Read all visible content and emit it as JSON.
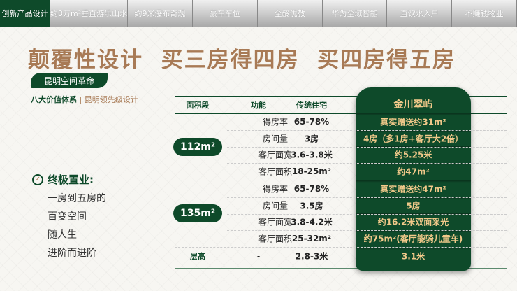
{
  "tabs": [
    "创新产品设计",
    "约3万m²垂直游乐山水",
    "约9米瀑布奇观",
    "豪车车位",
    "全龄优教",
    "华为全域智能",
    "直饮水入户",
    "不赚钱物业"
  ],
  "title": "颠覆性设计  买三房得四房  买四房得五房",
  "pill": "昆明空间革命",
  "subtitle": {
    "main": "八大价值体系",
    "sep": "|",
    "rest": "昆明领先级设计"
  },
  "left": {
    "heading": "终极置业:",
    "lines": [
      "一房到五房的",
      "百变空间",
      "随人生",
      "进阶而进阶"
    ]
  },
  "table": {
    "headers": [
      "面积段",
      "功能",
      "传统住宅",
      "金川翠屿"
    ],
    "groups": [
      {
        "area": "112m²",
        "rows": [
          [
            "得房率",
            "65-78%",
            "真实赠送约31m²"
          ],
          [
            "房间量",
            "3房",
            "4房（多1房+客厅大2倍）"
          ],
          [
            "客厅面宽",
            "3.6-3.8米",
            "约5.25米"
          ],
          [
            "客厅面积",
            "18-25m²",
            "约47m²"
          ]
        ]
      },
      {
        "area": "135m²",
        "rows": [
          [
            "得房率",
            "65-78%",
            "真实赠送约47m²"
          ],
          [
            "房间量",
            "3.5房",
            "5房"
          ],
          [
            "客厅面宽",
            "3.8-4.2米",
            "约16.2米双面采光"
          ],
          [
            "客厅面积",
            "25-32m²",
            "约75m²(客厅能骑儿童车)"
          ]
        ]
      }
    ],
    "last": {
      "label": "层高",
      "func": "-",
      "traditional": "2.8-3米",
      "jinchuan": "3.1米"
    }
  },
  "colors": {
    "green": "#0e4a2a",
    "gold": "#a87a55",
    "highlight": "#f1c98a"
  }
}
